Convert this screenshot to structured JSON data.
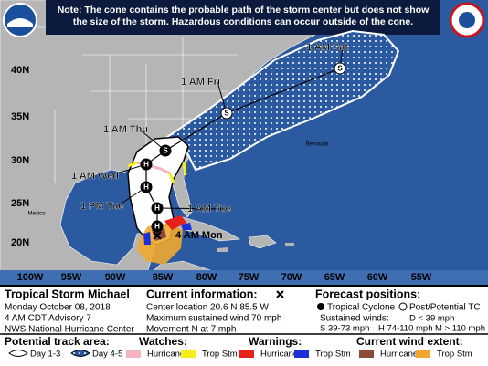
{
  "note": "Note: The cone contains the probable path of the storm center but does not show the size of the storm. Hazardous conditions can occur outside of the cone.",
  "map": {
    "lat_labels": [
      "40N",
      "35N",
      "30N",
      "25N",
      "20N"
    ],
    "lon_labels": [
      "100W",
      "95W",
      "90W",
      "85W",
      "80W",
      "75W",
      "70W",
      "65W",
      "60W",
      "55W"
    ],
    "places": [
      "Bermuda",
      "Mexico"
    ],
    "track": [
      {
        "label": "1 AM Sat",
        "letter": "S"
      },
      {
        "label": "1 AM Fri",
        "letter": "S"
      },
      {
        "label": "1 AM Thu",
        "letter": "S"
      },
      {
        "label": "1 AM Wed",
        "letter": "H"
      },
      {
        "label": "1 PM Tue",
        "letter": "H"
      },
      {
        "label": "1 AM Tue",
        "letter": "H"
      },
      {
        "letter": "H"
      }
    ],
    "current_label": "4 AM Mon"
  },
  "panel": {
    "storm": {
      "title": "Tropical Storm Michael",
      "date": "Monday October 08, 2018",
      "advisory": "4 AM CDT Advisory 7",
      "office": "NWS National Hurricane Center"
    },
    "current": {
      "heading": "Current information:",
      "lines": [
        "Center location 20.6 N 85.5 W",
        "Maximum sustained wind 70 mph",
        "Movement N at 7 mph"
      ]
    },
    "forecast": {
      "heading": "Forecast positions:",
      "tropical": "Tropical Cyclone",
      "post": "Post/Potential TC",
      "winds_heading": "Sustained winds:",
      "winds": [
        "D < 39 mph",
        "S 39-73 mph",
        "H 74-110 mph",
        "M > 110 mph"
      ]
    }
  },
  "legend": {
    "track_area": {
      "heading": "Potential track area:",
      "items": [
        "Day 1-3",
        "Day 4-5"
      ]
    },
    "watches": {
      "heading": "Watches:",
      "items": [
        "Hurricane",
        "Trop Stm"
      ]
    },
    "warnings": {
      "heading": "Warnings:",
      "items": [
        "Hurricane",
        "Trop Stm"
      ]
    },
    "wind_extent": {
      "heading": "Current wind extent:",
      "items": [
        "Hurricane",
        "Trop Stm"
      ]
    }
  }
}
